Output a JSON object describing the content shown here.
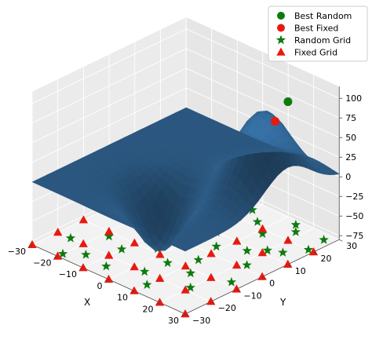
{
  "chart_data": {
    "type": "scatter",
    "subtype": "3d-surface-with-scatter",
    "xlabel": "X",
    "ylabel": "Y",
    "zlabel": "",
    "xlim": [
      -30,
      30
    ],
    "ylim": [
      -30,
      30
    ],
    "zlim": [
      -80,
      115
    ],
    "x_ticks": [
      -30,
      -20,
      -10,
      0,
      10,
      20,
      30
    ],
    "y_ticks": [
      -30,
      -20,
      -10,
      0,
      10,
      20,
      30
    ],
    "z_ticks": [
      -75,
      -50,
      -25,
      0,
      25,
      50,
      75,
      100
    ],
    "x_tick_labels": [
      "−30",
      "−20",
      "−10",
      "0",
      "10",
      "20",
      "30"
    ],
    "y_tick_labels": [
      "−30",
      "−20",
      "−10",
      "0",
      "10",
      "20",
      "30"
    ],
    "z_tick_labels": [
      "−75",
      "−50",
      "−25",
      "0",
      "25",
      "50",
      "75",
      "100"
    ],
    "grid": true,
    "legend": "top-right",
    "surface": {
      "color": "#3a78b0",
      "peak": {
        "x": 20,
        "y": 10,
        "z": 100
      },
      "trough": {
        "x": 0,
        "y": -10,
        "z": -75
      },
      "x_range": [
        -30,
        30
      ],
      "y_range": [
        -30,
        30
      ]
    },
    "series": [
      {
        "name": "Best Random",
        "marker": "circle",
        "color": "#0e7a0e",
        "points": [
          {
            "x": 25,
            "y": 15,
            "z": 112
          }
        ]
      },
      {
        "name": "Best Fixed",
        "marker": "circle",
        "color": "#e8190f",
        "points": [
          {
            "x": 25,
            "y": 10,
            "z": 95
          }
        ]
      },
      {
        "name": "Random Grid",
        "marker": "star",
        "color": "#0e7a0e",
        "points": [
          {
            "x": -25,
            "y": -20,
            "z": -80
          },
          {
            "x": -20,
            "y": -28,
            "z": -80
          },
          {
            "x": -18,
            "y": -12,
            "z": -80
          },
          {
            "x": -15,
            "y": -24,
            "z": -80
          },
          {
            "x": -12,
            "y": 5,
            "z": -80
          },
          {
            "x": -10,
            "y": -15,
            "z": -80
          },
          {
            "x": -8,
            "y": -2,
            "z": -80
          },
          {
            "x": -5,
            "y": 15,
            "z": -80
          },
          {
            "x": -3,
            "y": -8,
            "z": -80
          },
          {
            "x": 0,
            "y": 0,
            "z": -80
          },
          {
            "x": 2,
            "y": 10,
            "z": -80
          },
          {
            "x": 4,
            "y": -20,
            "z": -80
          },
          {
            "x": 6,
            "y": 22,
            "z": -80
          },
          {
            "x": 8,
            "y": 4,
            "z": -80
          },
          {
            "x": 10,
            "y": -5,
            "z": -80
          },
          {
            "x": 12,
            "y": 18,
            "z": -80
          },
          {
            "x": 14,
            "y": -12,
            "z": -80
          },
          {
            "x": 16,
            "y": 8,
            "z": -80
          },
          {
            "x": 18,
            "y": 25,
            "z": -80
          },
          {
            "x": 20,
            "y": -18,
            "z": -80
          },
          {
            "x": 22,
            "y": 2,
            "z": -80
          },
          {
            "x": 24,
            "y": 14,
            "z": -80
          },
          {
            "x": 26,
            "y": -8,
            "z": -80
          },
          {
            "x": 28,
            "y": 20,
            "z": -80
          },
          {
            "x": 15,
            "y": 28,
            "z": -80
          },
          {
            "x": -22,
            "y": 12,
            "z": -80
          },
          {
            "x": 0,
            "y": 26,
            "z": -80
          },
          {
            "x": 10,
            "y": -25,
            "z": -80
          },
          {
            "x": -6,
            "y": -25,
            "z": -80
          },
          {
            "x": 27,
            "y": 27,
            "z": -80
          },
          {
            "x": 20,
            "y": 12,
            "z": -80
          },
          {
            "x": 5,
            "y": -12,
            "z": -80
          }
        ]
      },
      {
        "name": "Fixed Grid",
        "marker": "triangle",
        "color": "#e8190f",
        "points": [
          {
            "x": -30,
            "y": -30,
            "z": -80
          },
          {
            "x": -20,
            "y": -30,
            "z": -80
          },
          {
            "x": -10,
            "y": -30,
            "z": -80
          },
          {
            "x": 0,
            "y": -30,
            "z": -80
          },
          {
            "x": 10,
            "y": -30,
            "z": -80
          },
          {
            "x": 20,
            "y": -30,
            "z": -80
          },
          {
            "x": 30,
            "y": -30,
            "z": -80
          },
          {
            "x": -30,
            "y": -20,
            "z": -80
          },
          {
            "x": -20,
            "y": -20,
            "z": -80
          },
          {
            "x": -10,
            "y": -20,
            "z": -80
          },
          {
            "x": 0,
            "y": -20,
            "z": -80
          },
          {
            "x": 10,
            "y": -20,
            "z": -80
          },
          {
            "x": 20,
            "y": -20,
            "z": -80
          },
          {
            "x": 30,
            "y": -20,
            "z": -80
          },
          {
            "x": -30,
            "y": -10,
            "z": -80
          },
          {
            "x": -20,
            "y": -10,
            "z": -80
          },
          {
            "x": -10,
            "y": -10,
            "z": -80
          },
          {
            "x": 0,
            "y": -10,
            "z": -80
          },
          {
            "x": 10,
            "y": -10,
            "z": -80
          },
          {
            "x": 20,
            "y": -10,
            "z": -80
          },
          {
            "x": 30,
            "y": -10,
            "z": -80
          },
          {
            "x": -30,
            "y": 0,
            "z": -80
          },
          {
            "x": -20,
            "y": 0,
            "z": -80
          },
          {
            "x": -10,
            "y": 0,
            "z": -80
          },
          {
            "x": 0,
            "y": 0,
            "z": -80
          },
          {
            "x": 10,
            "y": 0,
            "z": -80
          },
          {
            "x": 20,
            "y": 0,
            "z": -80
          },
          {
            "x": 30,
            "y": 0,
            "z": -80
          },
          {
            "x": -30,
            "y": 10,
            "z": -80
          },
          {
            "x": -20,
            "y": 10,
            "z": -80
          },
          {
            "x": -10,
            "y": 10,
            "z": -80
          },
          {
            "x": 0,
            "y": 10,
            "z": -80
          },
          {
            "x": 10,
            "y": 10,
            "z": -80
          },
          {
            "x": 20,
            "y": 10,
            "z": -80
          },
          {
            "x": 30,
            "y": 10,
            "z": -80
          },
          {
            "x": -30,
            "y": 20,
            "z": -80
          },
          {
            "x": -20,
            "y": 20,
            "z": -80
          },
          {
            "x": -10,
            "y": 20,
            "z": -80
          },
          {
            "x": 0,
            "y": 20,
            "z": -80
          },
          {
            "x": 10,
            "y": 20,
            "z": -80
          },
          {
            "x": 20,
            "y": 20,
            "z": -80
          },
          {
            "x": 30,
            "y": 20,
            "z": -80
          }
        ]
      }
    ]
  }
}
